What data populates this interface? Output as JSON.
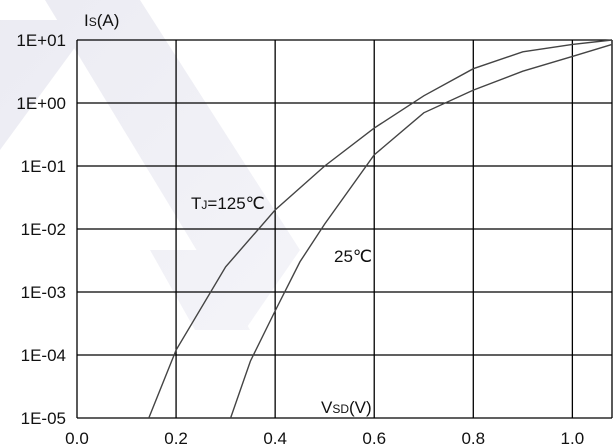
{
  "chart_data": {
    "type": "line",
    "title": "",
    "ylabel_main": "I",
    "ylabel_sub": "S",
    "ylabel_unit": "(A)",
    "xlabel_main": "V",
    "xlabel_sub": "SD",
    "xlabel_unit": "(V)",
    "xlim": [
      0.0,
      1.08
    ],
    "ylim": [
      1e-05,
      10
    ],
    "yscale": "log",
    "grid": true,
    "x_tick_values": [
      0.0,
      0.2,
      0.4,
      0.6,
      0.8,
      1.0
    ],
    "x_tick_labels": [
      "0.0",
      "0.2",
      "0.4",
      "0.6",
      "0.8",
      "1.0"
    ],
    "y_tick_values": [
      10,
      1,
      0.1,
      0.01,
      0.001,
      0.0001,
      1e-05
    ],
    "y_tick_labels": [
      "1E+01",
      "1E+00",
      "1E-01",
      "1E-02",
      "1E-03",
      "1E-04",
      "1E-05"
    ],
    "series": [
      {
        "name_main": "T",
        "name_sub": "J",
        "name_rest": "=125℃",
        "x": [
          0.145,
          0.2,
          0.3,
          0.4,
          0.5,
          0.6,
          0.7,
          0.8,
          0.9,
          1.0,
          1.08
        ],
        "y": [
          1e-05,
          0.00012,
          0.0025,
          0.02,
          0.1,
          0.4,
          1.3,
          3.5,
          6.5,
          8.5,
          10
        ]
      },
      {
        "name_main": "",
        "name_sub": "",
        "name_rest": "25℃",
        "x": [
          0.31,
          0.35,
          0.4,
          0.45,
          0.5,
          0.6,
          0.7,
          0.8,
          0.9,
          1.0,
          1.08
        ],
        "y": [
          1e-05,
          8e-05,
          0.0005,
          0.003,
          0.012,
          0.15,
          0.7,
          1.6,
          3.2,
          5.5,
          8.5
        ]
      }
    ],
    "line_color": "#444444",
    "grid_color": "#000000"
  }
}
